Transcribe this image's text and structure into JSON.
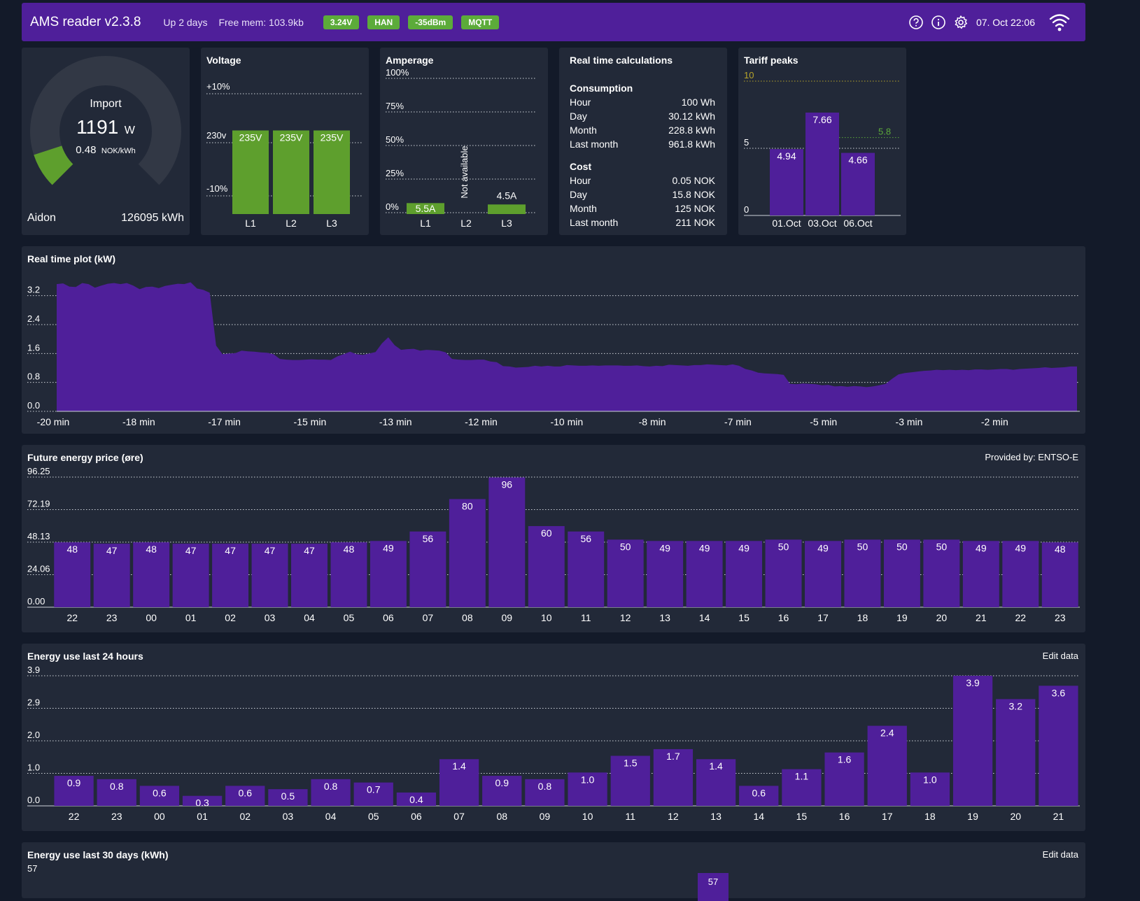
{
  "navbar": {
    "title": "AMS reader v2.3.8",
    "uptime": "Up 2 days",
    "free_mem": "Free mem: 103.9kb",
    "badges": [
      "3.24V",
      "HAN",
      "-35dBm",
      "MQTT"
    ],
    "datetime": "07. Oct 22:06",
    "colors": {
      "bar": "#4f1f9a",
      "badge": "#5cab3a"
    },
    "icons": [
      "help-icon",
      "info-icon",
      "gear-icon",
      "wifi-icon"
    ]
  },
  "gauge": {
    "label": "Import",
    "value": "1191",
    "unit": "W",
    "price": "0.48",
    "price_unit": "NOK/kWh",
    "meter": "Aidon",
    "total": "126095 kWh",
    "fraction": 0.1
  },
  "voltage": {
    "title": "Voltage",
    "axis_labels": [
      "+10%",
      "230v",
      "-10%"
    ],
    "categories": [
      "L1",
      "L2",
      "L3"
    ],
    "labels": [
      "235V",
      "235V",
      "235V"
    ],
    "values": [
      235,
      235,
      235
    ],
    "range": [
      207,
      253
    ],
    "color": "#5e9f2d"
  },
  "amperage": {
    "title": "Amperage",
    "axis_labels": [
      "100%",
      "75%",
      "50%",
      "25%",
      "0%"
    ],
    "categories": [
      "L1",
      "L2",
      "L3"
    ],
    "labels": [
      "5.5A",
      "Not available",
      "4.5A"
    ],
    "fractions": [
      0.08,
      null,
      0.07
    ],
    "color": "#5e9f2d"
  },
  "realtime": {
    "title": "Real time calculations",
    "consumption": {
      "heading": "Consumption",
      "rows": [
        [
          "Hour",
          "100 Wh"
        ],
        [
          "Day",
          "30.12 kWh"
        ],
        [
          "Month",
          "228.8 kWh"
        ],
        [
          "Last month",
          "961.8 kWh"
        ]
      ]
    },
    "cost": {
      "heading": "Cost",
      "rows": [
        [
          "Hour",
          "0.05 NOK"
        ],
        [
          "Day",
          "15.8 NOK"
        ],
        [
          "Month",
          "125 NOK"
        ],
        [
          "Last month",
          "211 NOK"
        ]
      ]
    }
  },
  "tariff": {
    "title": "Tariff peaks",
    "ylim": [
      0,
      10
    ],
    "ticks": [
      "10",
      "5",
      "0"
    ],
    "threshold": 10,
    "average": 5.8,
    "average_label": "5.8",
    "categories": [
      "01.Oct",
      "03.Oct",
      "06.Oct"
    ],
    "values": [
      4.94,
      7.66,
      4.66
    ],
    "labels": [
      "4.94",
      "7.66",
      "4.66"
    ],
    "colors": {
      "bar": "#4f1f9a",
      "threshold": "#b8a52a",
      "average": "#5cab3a"
    }
  },
  "rtplot": {
    "title": "Real time plot (kW)",
    "ticks": [
      "3.2",
      "2.4",
      "1.6",
      "0.8",
      "0.0"
    ],
    "x_labels": [
      "-20 min",
      "-18 min",
      "-17 min",
      "-15 min",
      "-13 min",
      "-12 min",
      "-10 min",
      "-8 min",
      "-7 min",
      "-5 min",
      "-3 min",
      "-2 min"
    ],
    "ylim": [
      0,
      3.6
    ],
    "values": [
      3.52,
      3.54,
      3.45,
      3.44,
      3.55,
      3.52,
      3.42,
      3.48,
      3.53,
      3.55,
      3.52,
      3.55,
      3.48,
      3.38,
      3.44,
      3.45,
      3.41,
      3.47,
      3.5,
      3.53,
      3.52,
      3.57,
      3.4,
      3.36,
      3.28,
      1.82,
      1.58,
      1.6,
      1.61,
      1.68,
      1.66,
      1.65,
      1.63,
      1.62,
      1.58,
      1.45,
      1.43,
      1.42,
      1.42,
      1.43,
      1.44,
      1.43,
      1.43,
      1.42,
      1.52,
      1.58,
      1.65,
      1.58,
      1.56,
      1.6,
      1.64,
      1.88,
      2.05,
      1.83,
      1.7,
      1.72,
      1.73,
      1.68,
      1.7,
      1.69,
      1.68,
      1.63,
      1.45,
      1.43,
      1.42,
      1.42,
      1.43,
      1.43,
      1.38,
      1.36,
      1.25,
      1.24,
      1.21,
      1.22,
      1.23,
      1.26,
      1.24,
      1.26,
      1.24,
      1.24,
      1.28,
      1.27,
      1.26,
      1.26,
      1.27,
      1.26,
      1.27,
      1.27,
      1.27,
      1.26,
      1.26,
      1.27,
      1.25,
      1.24,
      1.26,
      1.25,
      1.29,
      1.28,
      1.27,
      1.26,
      1.28,
      1.28,
      1.3,
      1.29,
      1.28,
      1.27,
      1.3,
      1.26,
      1.17,
      1.13,
      1.07,
      1.05,
      1.04,
      1.03,
      1.01,
      0.76,
      0.75,
      0.77,
      0.76,
      0.75,
      0.72,
      0.73,
      0.69,
      0.7,
      0.68,
      0.7,
      0.69,
      0.67,
      0.69,
      0.72,
      0.76,
      0.9,
      1.02,
      1.06,
      1.08,
      1.1,
      1.12,
      1.13,
      1.15,
      1.14,
      1.15,
      1.14,
      1.15,
      1.14,
      1.16,
      1.16,
      1.15,
      1.16,
      1.17,
      1.17,
      1.15,
      1.17,
      1.18,
      1.19,
      1.2,
      1.22,
      1.2,
      1.21,
      1.22,
      1.24,
      1.24
    ],
    "color": "#4f1f9a"
  },
  "price": {
    "title": "Future energy price (øre)",
    "provider": "Provided by: ENTSO-E",
    "ticks": [
      "96.25",
      "72.19",
      "48.13",
      "24.06",
      "0.00"
    ],
    "ylim": [
      0,
      96.25
    ],
    "categories": [
      "22",
      "23",
      "00",
      "01",
      "02",
      "03",
      "04",
      "05",
      "06",
      "07",
      "08",
      "09",
      "10",
      "11",
      "12",
      "13",
      "14",
      "15",
      "16",
      "17",
      "18",
      "19",
      "20",
      "21",
      "22",
      "23"
    ],
    "values": [
      48,
      47,
      48,
      47,
      47,
      47,
      47,
      48,
      49,
      56,
      80,
      96,
      60,
      56,
      50,
      49,
      49,
      49,
      50,
      49,
      50,
      50,
      50,
      49,
      49,
      48
    ],
    "color": "#4f1f9a"
  },
  "day24": {
    "title": "Energy use last 24 hours",
    "edit": "Edit data",
    "ticks": [
      "3.9",
      "2.9",
      "2.0",
      "1.0",
      "0.0"
    ],
    "ylim": [
      0,
      3.9
    ],
    "categories": [
      "22",
      "23",
      "00",
      "01",
      "02",
      "03",
      "04",
      "05",
      "06",
      "07",
      "08",
      "09",
      "10",
      "11",
      "12",
      "13",
      "14",
      "15",
      "16",
      "17",
      "18",
      "19",
      "20",
      "21"
    ],
    "values": [
      0.9,
      0.8,
      0.6,
      0.3,
      0.6,
      0.5,
      0.8,
      0.7,
      0.4,
      1.4,
      0.9,
      0.8,
      1.0,
      1.5,
      1.7,
      1.4,
      0.6,
      1.1,
      1.6,
      2.4,
      1.0,
      3.9,
      3.2,
      3.6
    ],
    "labels": [
      "0.9",
      "0.8",
      "0.6",
      "0.3",
      "0.6",
      "0.5",
      "0.8",
      "0.7",
      "0.4",
      "1.4",
      "0.9",
      "0.8",
      "1.0",
      "1.5",
      "1.7",
      "1.4",
      "0.6",
      "1.1",
      "1.6",
      "2.4",
      "1.0",
      "3.9",
      "3.2",
      "3.6"
    ],
    "color": "#4f1f9a"
  },
  "month30": {
    "title": "Energy use last 30 days (kWh)",
    "edit": "Edit data",
    "ticks": [
      "57"
    ],
    "visible_bar_label": "57",
    "color": "#4f1f9a"
  }
}
